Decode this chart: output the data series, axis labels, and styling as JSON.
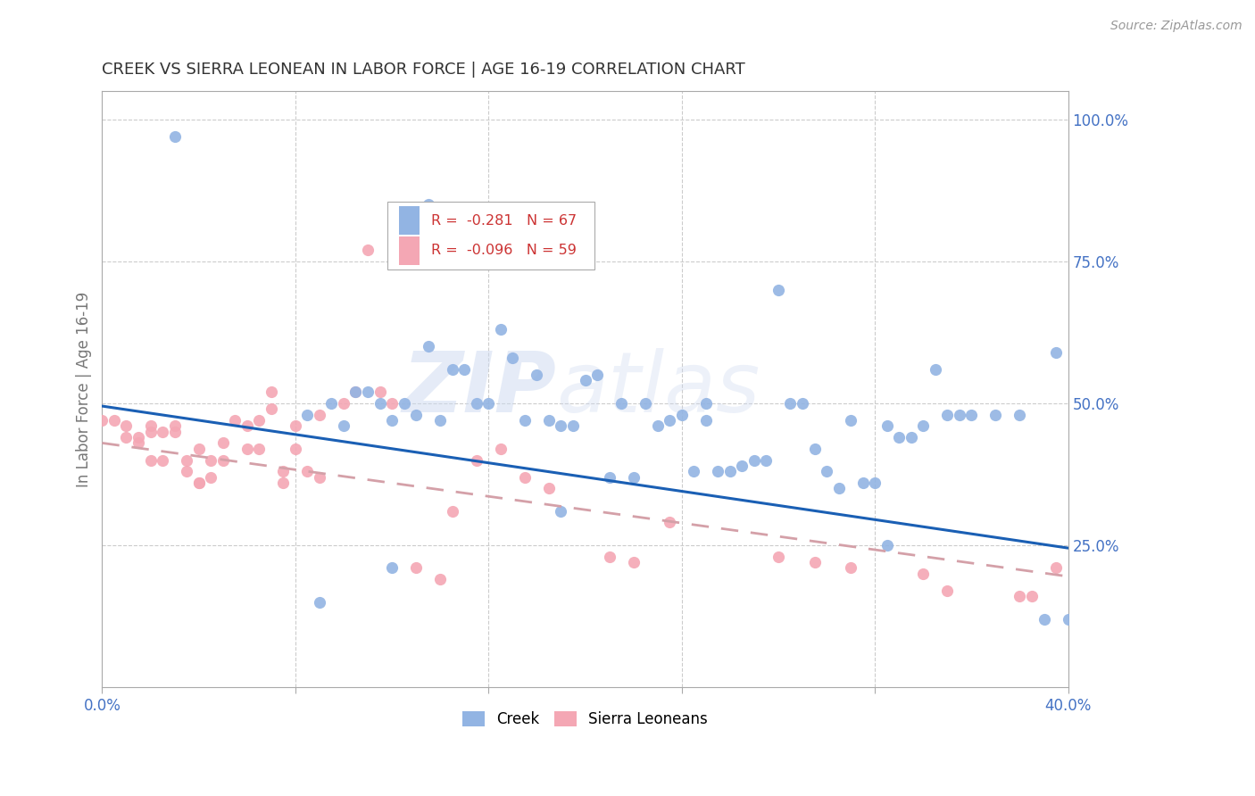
{
  "title": "CREEK VS SIERRA LEONEAN IN LABOR FORCE | AGE 16-19 CORRELATION CHART",
  "source": "Source: ZipAtlas.com",
  "ylabel": "In Labor Force | Age 16-19",
  "xlim": [
    0.0,
    0.4
  ],
  "ylim": [
    0.0,
    1.05
  ],
  "xticks": [
    0.0,
    0.08,
    0.16,
    0.24,
    0.32,
    0.4
  ],
  "xtick_labels": [
    "0.0%",
    "",
    "",
    "",
    "",
    "40.0%"
  ],
  "ytick_labels_right": [
    "100.0%",
    "75.0%",
    "50.0%",
    "25.0%"
  ],
  "ytick_vals_right": [
    1.0,
    0.75,
    0.5,
    0.25
  ],
  "creek_color": "#92b4e3",
  "sierra_color": "#f4a7b4",
  "creek_line_color": "#1a5fb4",
  "sierra_line_color": "#d4a0a8",
  "legend_creek_R": "-0.281",
  "legend_creek_N": "67",
  "legend_sierra_R": "-0.096",
  "legend_sierra_N": "59",
  "watermark_zip": "ZIP",
  "watermark_atlas": "atlas",
  "creek_points_x": [
    0.03,
    0.085,
    0.095,
    0.1,
    0.105,
    0.11,
    0.115,
    0.12,
    0.125,
    0.13,
    0.135,
    0.14,
    0.145,
    0.15,
    0.155,
    0.16,
    0.165,
    0.17,
    0.175,
    0.18,
    0.185,
    0.19,
    0.195,
    0.2,
    0.205,
    0.21,
    0.215,
    0.22,
    0.225,
    0.23,
    0.235,
    0.24,
    0.245,
    0.25,
    0.255,
    0.26,
    0.265,
    0.27,
    0.275,
    0.28,
    0.285,
    0.29,
    0.3,
    0.305,
    0.31,
    0.315,
    0.32,
    0.325,
    0.33,
    0.335,
    0.34,
    0.345,
    0.35,
    0.355,
    0.36,
    0.37,
    0.38,
    0.395,
    0.4,
    0.09,
    0.12,
    0.135,
    0.19,
    0.25,
    0.295,
    0.325,
    0.39
  ],
  "creek_points_y": [
    0.97,
    0.48,
    0.5,
    0.46,
    0.52,
    0.52,
    0.5,
    0.47,
    0.5,
    0.48,
    0.6,
    0.47,
    0.56,
    0.56,
    0.5,
    0.5,
    0.63,
    0.58,
    0.47,
    0.55,
    0.47,
    0.46,
    0.46,
    0.54,
    0.55,
    0.37,
    0.5,
    0.37,
    0.5,
    0.46,
    0.47,
    0.48,
    0.38,
    0.5,
    0.38,
    0.38,
    0.39,
    0.4,
    0.4,
    0.7,
    0.5,
    0.5,
    0.38,
    0.35,
    0.47,
    0.36,
    0.36,
    0.46,
    0.44,
    0.44,
    0.46,
    0.56,
    0.48,
    0.48,
    0.48,
    0.48,
    0.48,
    0.59,
    0.12,
    0.15,
    0.21,
    0.85,
    0.31,
    0.47,
    0.42,
    0.25,
    0.12
  ],
  "sierra_points_x": [
    0.0,
    0.005,
    0.01,
    0.01,
    0.015,
    0.015,
    0.02,
    0.02,
    0.02,
    0.025,
    0.025,
    0.03,
    0.03,
    0.035,
    0.035,
    0.04,
    0.04,
    0.04,
    0.045,
    0.045,
    0.05,
    0.05,
    0.055,
    0.06,
    0.06,
    0.065,
    0.065,
    0.07,
    0.07,
    0.075,
    0.075,
    0.08,
    0.08,
    0.085,
    0.09,
    0.09,
    0.1,
    0.105,
    0.11,
    0.115,
    0.12,
    0.13,
    0.14,
    0.145,
    0.155,
    0.165,
    0.175,
    0.185,
    0.21,
    0.22,
    0.235,
    0.28,
    0.295,
    0.31,
    0.34,
    0.35,
    0.38,
    0.385,
    0.395
  ],
  "sierra_points_y": [
    0.47,
    0.47,
    0.46,
    0.44,
    0.44,
    0.43,
    0.46,
    0.45,
    0.4,
    0.45,
    0.4,
    0.46,
    0.45,
    0.4,
    0.38,
    0.42,
    0.36,
    0.36,
    0.4,
    0.37,
    0.43,
    0.4,
    0.47,
    0.46,
    0.42,
    0.47,
    0.42,
    0.52,
    0.49,
    0.38,
    0.36,
    0.46,
    0.42,
    0.38,
    0.37,
    0.48,
    0.5,
    0.52,
    0.77,
    0.52,
    0.5,
    0.21,
    0.19,
    0.31,
    0.4,
    0.42,
    0.37,
    0.35,
    0.23,
    0.22,
    0.29,
    0.23,
    0.22,
    0.21,
    0.2,
    0.17,
    0.16,
    0.16,
    0.21
  ],
  "creek_trend_x": [
    0.0,
    0.4
  ],
  "creek_trend_y": [
    0.495,
    0.245
  ],
  "sierra_trend_x": [
    0.0,
    0.4
  ],
  "sierra_trend_y": [
    0.43,
    0.195
  ],
  "background_color": "#ffffff",
  "grid_color": "#cccccc",
  "title_color": "#333333",
  "axis_label_color": "#777777",
  "right_tick_color": "#4472c4",
  "source_color": "#999999"
}
